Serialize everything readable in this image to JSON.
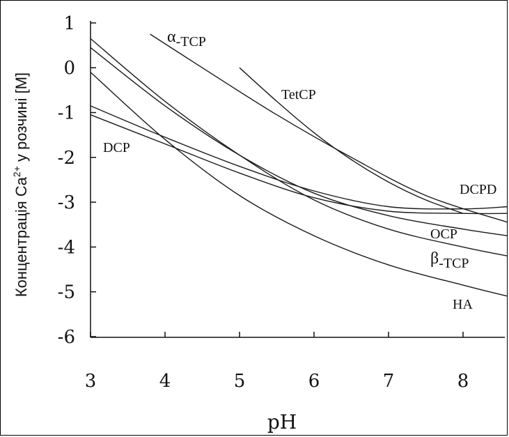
{
  "chart_data": {
    "type": "line",
    "xlabel": "pH",
    "ylabel": "Концентрація Ca2+ у розчині [M]",
    "ylabel_parts": {
      "pre": "Концентрація Ca",
      "sup": "2+",
      "post": " у розчині [M]"
    },
    "xlim": [
      3,
      8.6
    ],
    "ylim": [
      -6,
      1
    ],
    "xticks": [
      3,
      4,
      5,
      6,
      7,
      8
    ],
    "yticks": [
      1,
      0,
      -1,
      -2,
      -3,
      -4,
      -5,
      -6
    ],
    "grid": false,
    "line_color": "#1a1a1a",
    "series": [
      {
        "name": "α-TCP",
        "x": [
          3.8,
          4.5,
          5.5,
          6.5,
          7.5,
          8.6
        ],
        "y": [
          0.75,
          0.0,
          -1.05,
          -2.0,
          -2.85,
          -3.45
        ]
      },
      {
        "name": "TetCP",
        "x": [
          5.0,
          5.5,
          6.0,
          6.5,
          7.0,
          7.5,
          8.0
        ],
        "y": [
          0.0,
          -0.75,
          -1.45,
          -2.05,
          -2.55,
          -2.95,
          -3.25
        ]
      },
      {
        "name": "DCPD",
        "x": [
          3.0,
          4.0,
          5.0,
          6.0,
          7.0,
          8.0,
          8.6
        ],
        "y": [
          -0.85,
          -1.55,
          -2.2,
          -2.75,
          -3.1,
          -3.15,
          -3.1
        ]
      },
      {
        "name": "DCP",
        "x": [
          3.0,
          4.0,
          5.0,
          6.0,
          7.0,
          8.0,
          8.6
        ],
        "y": [
          -1.05,
          -1.7,
          -2.35,
          -2.9,
          -3.2,
          -3.25,
          -3.25
        ]
      },
      {
        "name": "OCP",
        "x": [
          3.0,
          4.0,
          5.0,
          6.0,
          7.0,
          8.0,
          8.6
        ],
        "y": [
          0.45,
          -0.85,
          -1.95,
          -2.8,
          -3.3,
          -3.6,
          -3.75
        ]
      },
      {
        "name": "β-TCP",
        "x": [
          3.0,
          4.0,
          5.0,
          6.0,
          7.0,
          8.0,
          8.6
        ],
        "y": [
          0.65,
          -0.75,
          -1.95,
          -2.95,
          -3.6,
          -4.0,
          -4.2
        ]
      },
      {
        "name": "HA",
        "x": [
          3.0,
          4.0,
          5.0,
          6.0,
          7.0,
          8.0,
          8.6
        ],
        "y": [
          -0.1,
          -1.6,
          -2.85,
          -3.75,
          -4.4,
          -4.85,
          -5.1
        ]
      }
    ],
    "labels": [
      {
        "text": "α",
        "sub": "-TCP",
        "series": "α-TCP"
      },
      {
        "text": "TetCP",
        "series": "TetCP"
      },
      {
        "text": "DCPD",
        "series": "DCPD"
      },
      {
        "text": "DCP",
        "series": "DCP"
      },
      {
        "text": "OCP",
        "series": "OCP"
      },
      {
        "text": "β",
        "sub": "-TCP",
        "series": "β-TCP"
      },
      {
        "text": "HA",
        "series": "HA"
      }
    ]
  }
}
